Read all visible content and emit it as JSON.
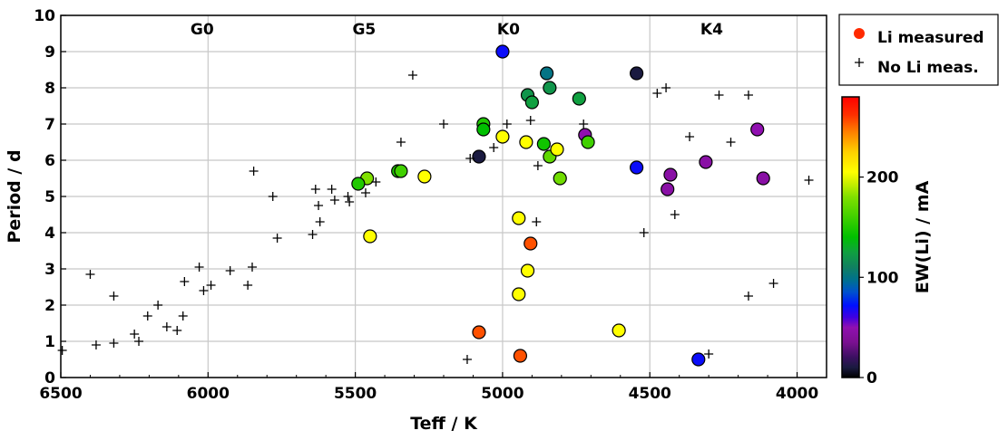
{
  "chart_data": {
    "type": "scatter",
    "xlabel": "Teff / K",
    "ylabel": "Period / d",
    "colorbar_label": "EW(Li) / mA",
    "xlim": [
      6500,
      3900
    ],
    "ylim": [
      0,
      10
    ],
    "x_ticks": [
      6500,
      6000,
      5500,
      5000,
      4500,
      4000
    ],
    "y_ticks": [
      0,
      1,
      2,
      3,
      4,
      5,
      6,
      7,
      8,
      9,
      10
    ],
    "colorbar_range": [
      0,
      280
    ],
    "colorbar_ticks": [
      0,
      100,
      200
    ],
    "grid": true,
    "spectral_types": [
      {
        "label": "G0",
        "teff": 6020
      },
      {
        "label": "G5",
        "teff": 5470
      },
      {
        "label": "K0",
        "teff": 4980
      },
      {
        "label": "K4",
        "teff": 4290
      }
    ],
    "legend": {
      "placement": "top-right, outside plot",
      "entries": [
        {
          "label": "Li measured",
          "marker": "circle",
          "color": "#ff2a00"
        },
        {
          "label": "No Li meas.",
          "marker": "plus",
          "color": "#000000"
        }
      ]
    },
    "colormap": [
      {
        "v": 0,
        "color": "#000000"
      },
      {
        "v": 10,
        "color": "#1a1a40"
      },
      {
        "v": 20,
        "color": "#3a1060"
      },
      {
        "v": 35,
        "color": "#7a1090"
      },
      {
        "v": 50,
        "color": "#9010b0"
      },
      {
        "v": 60,
        "color": "#4000e0"
      },
      {
        "v": 72,
        "color": "#0010ff"
      },
      {
        "v": 85,
        "color": "#0050d0"
      },
      {
        "v": 97,
        "color": "#007090"
      },
      {
        "v": 110,
        "color": "#108060"
      },
      {
        "v": 125,
        "color": "#10a040"
      },
      {
        "v": 140,
        "color": "#00c000"
      },
      {
        "v": 160,
        "color": "#40d000"
      },
      {
        "v": 180,
        "color": "#80e000"
      },
      {
        "v": 195,
        "color": "#d0f000"
      },
      {
        "v": 205,
        "color": "#ffff00"
      },
      {
        "v": 225,
        "color": "#ffd000"
      },
      {
        "v": 245,
        "color": "#ff8000"
      },
      {
        "v": 262,
        "color": "#ff3000"
      },
      {
        "v": 280,
        "color": "#ff0000"
      }
    ],
    "series": [
      {
        "name": "Li measured",
        "marker": "circle",
        "points": [
          {
            "x": 5000,
            "y": 9.0,
            "ew": 70
          },
          {
            "x": 4850,
            "y": 8.4,
            "ew": 100
          },
          {
            "x": 4545,
            "y": 8.4,
            "ew": 10
          },
          {
            "x": 4915,
            "y": 7.8,
            "ew": 120
          },
          {
            "x": 4900,
            "y": 7.6,
            "ew": 125
          },
          {
            "x": 4840,
            "y": 8.0,
            "ew": 120
          },
          {
            "x": 4740,
            "y": 7.7,
            "ew": 125
          },
          {
            "x": 5065,
            "y": 7.0,
            "ew": 150
          },
          {
            "x": 5065,
            "y": 6.85,
            "ew": 140
          },
          {
            "x": 4860,
            "y": 6.45,
            "ew": 145
          },
          {
            "x": 4720,
            "y": 6.7,
            "ew": 50
          },
          {
            "x": 4710,
            "y": 6.5,
            "ew": 160
          },
          {
            "x": 4840,
            "y": 6.1,
            "ew": 170
          },
          {
            "x": 4805,
            "y": 5.5,
            "ew": 175
          },
          {
            "x": 5000,
            "y": 6.65,
            "ew": 205
          },
          {
            "x": 4920,
            "y": 6.5,
            "ew": 205
          },
          {
            "x": 4815,
            "y": 6.3,
            "ew": 205
          },
          {
            "x": 5080,
            "y": 6.1,
            "ew": 10
          },
          {
            "x": 4545,
            "y": 5.8,
            "ew": 70
          },
          {
            "x": 4135,
            "y": 6.85,
            "ew": 50
          },
          {
            "x": 4310,
            "y": 5.95,
            "ew": 45
          },
          {
            "x": 4430,
            "y": 5.6,
            "ew": 45
          },
          {
            "x": 4440,
            "y": 5.2,
            "ew": 45
          },
          {
            "x": 4115,
            "y": 5.5,
            "ew": 45
          },
          {
            "x": 5355,
            "y": 5.7,
            "ew": 150
          },
          {
            "x": 5345,
            "y": 5.7,
            "ew": 160
          },
          {
            "x": 5460,
            "y": 5.5,
            "ew": 180
          },
          {
            "x": 5490,
            "y": 5.35,
            "ew": 150
          },
          {
            "x": 5265,
            "y": 5.55,
            "ew": 205
          },
          {
            "x": 5450,
            "y": 3.9,
            "ew": 205
          },
          {
            "x": 4945,
            "y": 4.4,
            "ew": 205
          },
          {
            "x": 4915,
            "y": 2.95,
            "ew": 205
          },
          {
            "x": 4945,
            "y": 2.3,
            "ew": 205
          },
          {
            "x": 4605,
            "y": 1.3,
            "ew": 205
          },
          {
            "x": 4905,
            "y": 3.7,
            "ew": 255
          },
          {
            "x": 5080,
            "y": 1.25,
            "ew": 255
          },
          {
            "x": 4940,
            "y": 0.6,
            "ew": 255
          },
          {
            "x": 4335,
            "y": 0.5,
            "ew": 70
          }
        ]
      },
      {
        "name": "No Li meas.",
        "marker": "plus",
        "points": [
          {
            "x": 6495,
            "y": 0.75
          },
          {
            "x": 6400,
            "y": 2.85
          },
          {
            "x": 6380,
            "y": 0.9
          },
          {
            "x": 6320,
            "y": 2.25
          },
          {
            "x": 6320,
            "y": 0.95
          },
          {
            "x": 6250,
            "y": 1.2
          },
          {
            "x": 6235,
            "y": 1.0
          },
          {
            "x": 6205,
            "y": 1.7
          },
          {
            "x": 6170,
            "y": 2.0
          },
          {
            "x": 6140,
            "y": 1.4
          },
          {
            "x": 6105,
            "y": 1.3
          },
          {
            "x": 6085,
            "y": 1.7
          },
          {
            "x": 6080,
            "y": 2.65
          },
          {
            "x": 6030,
            "y": 3.05
          },
          {
            "x": 6015,
            "y": 2.4
          },
          {
            "x": 5990,
            "y": 2.55
          },
          {
            "x": 5925,
            "y": 2.95
          },
          {
            "x": 5865,
            "y": 2.55
          },
          {
            "x": 5850,
            "y": 3.05
          },
          {
            "x": 5845,
            "y": 5.7
          },
          {
            "x": 5780,
            "y": 5.0
          },
          {
            "x": 5765,
            "y": 3.85
          },
          {
            "x": 5645,
            "y": 3.95
          },
          {
            "x": 5635,
            "y": 5.2
          },
          {
            "x": 5625,
            "y": 4.75
          },
          {
            "x": 5620,
            "y": 4.3
          },
          {
            "x": 5580,
            "y": 5.2
          },
          {
            "x": 5570,
            "y": 4.9
          },
          {
            "x": 5525,
            "y": 5.0
          },
          {
            "x": 5520,
            "y": 4.85
          },
          {
            "x": 5465,
            "y": 5.1
          },
          {
            "x": 5430,
            "y": 5.4
          },
          {
            "x": 5345,
            "y": 6.5
          },
          {
            "x": 5305,
            "y": 8.35
          },
          {
            "x": 5200,
            "y": 7.0
          },
          {
            "x": 5110,
            "y": 6.05
          },
          {
            "x": 5120,
            "y": 0.5
          },
          {
            "x": 5030,
            "y": 6.35
          },
          {
            "x": 4985,
            "y": 7.0
          },
          {
            "x": 4905,
            "y": 7.1
          },
          {
            "x": 4880,
            "y": 5.85
          },
          {
            "x": 4885,
            "y": 4.3
          },
          {
            "x": 4725,
            "y": 7.0
          },
          {
            "x": 4520,
            "y": 4.0
          },
          {
            "x": 4475,
            "y": 7.85
          },
          {
            "x": 4445,
            "y": 8.0
          },
          {
            "x": 4415,
            "y": 4.5
          },
          {
            "x": 4365,
            "y": 6.65
          },
          {
            "x": 4300,
            "y": 0.65
          },
          {
            "x": 4265,
            "y": 7.8
          },
          {
            "x": 4225,
            "y": 6.5
          },
          {
            "x": 4165,
            "y": 7.8
          },
          {
            "x": 4165,
            "y": 2.25
          },
          {
            "x": 4080,
            "y": 2.6
          },
          {
            "x": 3960,
            "y": 5.45
          }
        ]
      }
    ]
  }
}
